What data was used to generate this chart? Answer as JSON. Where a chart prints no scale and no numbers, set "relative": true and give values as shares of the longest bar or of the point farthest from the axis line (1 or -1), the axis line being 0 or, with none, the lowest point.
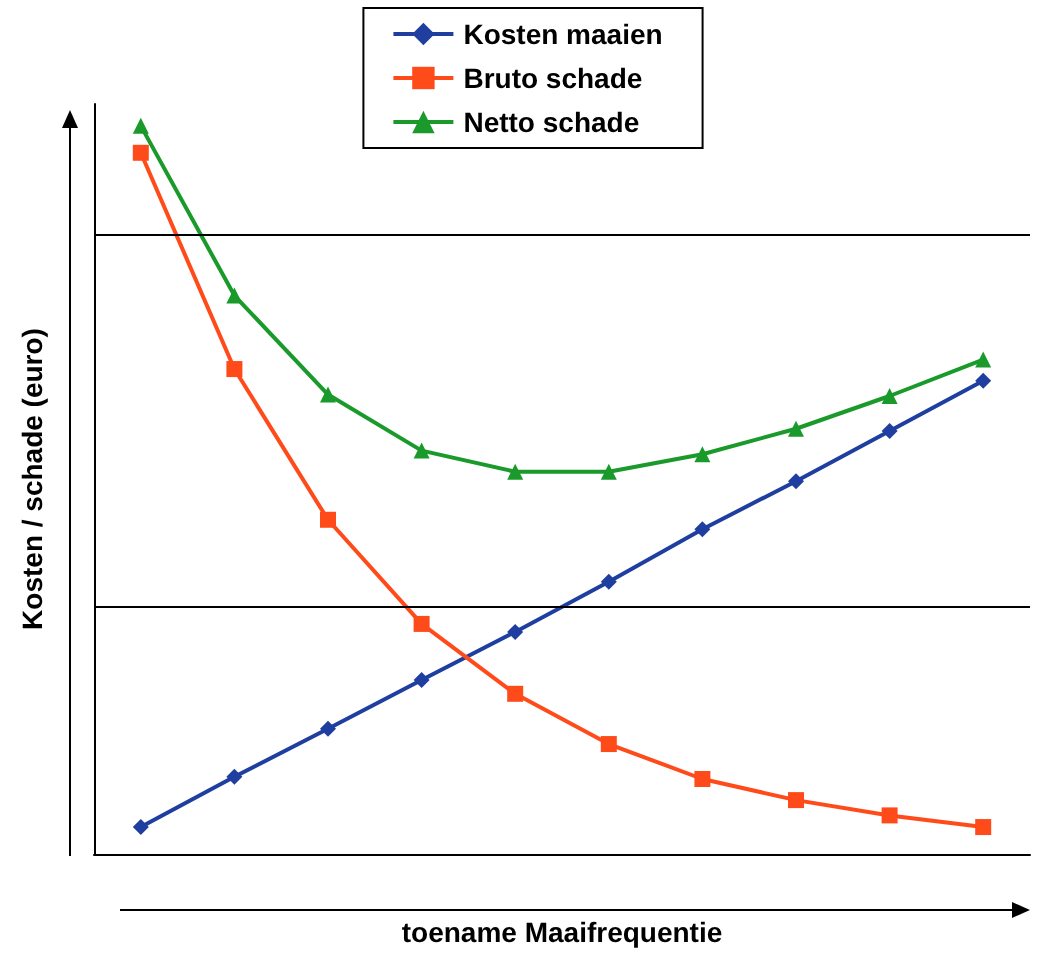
{
  "chart_data": {
    "type": "line",
    "relative": true,
    "xlabel": "toename Maaifrequentie",
    "ylabel": "Kosten / schade (euro)",
    "categories": [
      null,
      null,
      null,
      null,
      null,
      null,
      null,
      null,
      null,
      null
    ],
    "ref_lines": [
      {
        "axis": "y",
        "value": 0.34,
        "color": "#000000"
      },
      {
        "axis": "y",
        "value": 0.85,
        "color": "#000000"
      }
    ],
    "legend": "top",
    "line_style": "solid",
    "series": [
      {
        "name": "Kosten maaien",
        "color": "#1f3fa0",
        "marker": "diamond",
        "values": [
          0.037,
          0.106,
          0.172,
          0.239,
          0.305,
          0.374,
          0.446,
          0.512,
          0.581,
          0.65
        ]
      },
      {
        "name": "Bruto schade",
        "color": "#ff4a1a",
        "marker": "square",
        "values": [
          0.963,
          0.666,
          0.459,
          0.316,
          0.22,
          0.151,
          0.103,
          0.074,
          0.053,
          0.037
        ]
      },
      {
        "name": "Netto schade",
        "color": "#1a9a2a",
        "marker": "triangle",
        "values": [
          1,
          0.767,
          0.631,
          0.554,
          0.525,
          0.525,
          0.549,
          0.584,
          0.629,
          0.679
        ]
      }
    ]
  }
}
